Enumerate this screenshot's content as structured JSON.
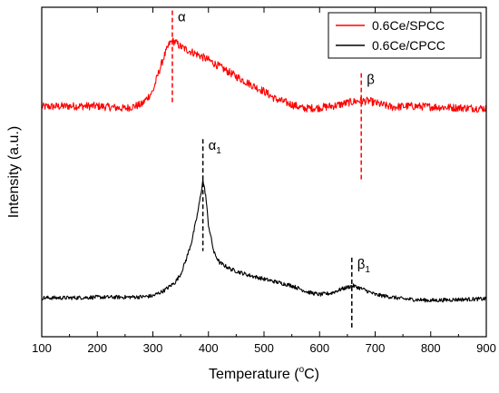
{
  "chart_data": {
    "type": "line",
    "xlabel_main": "Temperature (",
    "xlabel_sup": "o",
    "xlabel_tail": "C)",
    "ylabel": "Intensity (a.u.)",
    "xlim": [
      100,
      900
    ],
    "xticks": [
      100,
      200,
      300,
      400,
      500,
      600,
      700,
      800,
      900
    ],
    "ylim": [
      0,
      1
    ],
    "yticks_labeled": false,
    "grid": false,
    "legend_position": "top-right",
    "series": [
      {
        "name": "0.6Ce/SPCC",
        "color": "#ff0000",
        "x": [
          100,
          150,
          200,
          250,
          280,
          300,
          310,
          320,
          330,
          335,
          340,
          350,
          360,
          380,
          400,
          420,
          450,
          480,
          500,
          520,
          550,
          570,
          600,
          630,
          650,
          670,
          690,
          710,
          730,
          760,
          800,
          850,
          900
        ],
        "y": [
          0.698,
          0.7,
          0.7,
          0.693,
          0.705,
          0.745,
          0.8,
          0.85,
          0.89,
          0.897,
          0.895,
          0.88,
          0.872,
          0.857,
          0.84,
          0.82,
          0.79,
          0.762,
          0.745,
          0.722,
          0.705,
          0.693,
          0.695,
          0.702,
          0.71,
          0.716,
          0.715,
          0.705,
          0.697,
          0.7,
          0.698,
          0.695,
          0.693
        ]
      },
      {
        "name": "0.6Ce/CPCC",
        "color": "#000000",
        "x": [
          100,
          150,
          200,
          250,
          280,
          300,
          320,
          340,
          350,
          360,
          370,
          380,
          385,
          390,
          395,
          400,
          410,
          420,
          440,
          470,
          500,
          550,
          580,
          600,
          620,
          640,
          660,
          680,
          700,
          750,
          800,
          850,
          900
        ],
        "y": [
          0.118,
          0.118,
          0.12,
          0.12,
          0.121,
          0.124,
          0.14,
          0.165,
          0.19,
          0.235,
          0.29,
          0.37,
          0.42,
          0.475,
          0.43,
          0.34,
          0.255,
          0.225,
          0.205,
          0.188,
          0.175,
          0.155,
          0.135,
          0.128,
          0.132,
          0.145,
          0.155,
          0.143,
          0.128,
          0.115,
          0.11,
          0.113,
          0.115
        ]
      }
    ],
    "annotations": [
      {
        "label": "α",
        "sub": "",
        "x": 335,
        "y_top": 0.99,
        "y_bottom": 0.71,
        "color": "#ff0000"
      },
      {
        "label": "β",
        "sub": "",
        "x": 675,
        "y_top": 0.8,
        "y_bottom": 0.47,
        "color": "#ff0000"
      },
      {
        "label": "α",
        "sub": "1",
        "x": 390,
        "y_top": 0.6,
        "y_bottom": 0.26,
        "color": "#000000"
      },
      {
        "label": "β",
        "sub": "1",
        "x": 658,
        "y_top": 0.24,
        "y_bottom": 0.02,
        "color": "#000000"
      }
    ]
  }
}
